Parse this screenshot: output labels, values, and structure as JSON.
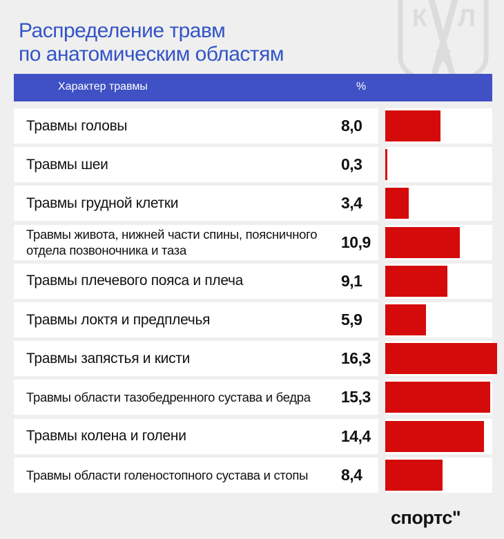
{
  "title_line1": "Распределение травм",
  "title_line2": "по анатомическим областям",
  "header": {
    "label": "Характер травмы",
    "value": "%"
  },
  "logo": {
    "letters": [
      "К",
      "Л",
      "Х"
    ]
  },
  "brand": "спортс\"",
  "colors": {
    "title": "#3354c6",
    "header_bg": "#3f51c4",
    "bar": "#d50b0b",
    "background": "#efefef"
  },
  "chart_data": {
    "type": "bar",
    "orientation": "horizontal",
    "categories": [
      "Травмы головы",
      "Травмы шеи",
      "Травмы грудной клетки",
      "Травмы живота, нижней части спины, поясничного отдела позвоночника и таза",
      "Травмы плечевого пояса и плеча",
      "Травмы локтя и предплечья",
      "Травмы запястья и кисти",
      "Травмы области тазобедренного сустава и бедра",
      "Травмы колена и голени",
      "Травмы области голеностопного сустава и стопы"
    ],
    "values": [
      8.0,
      0.3,
      3.4,
      10.9,
      9.1,
      5.9,
      16.3,
      15.3,
      14.4,
      8.4
    ],
    "value_labels": [
      "8,0",
      "0,3",
      "3,4",
      "10,9",
      "9,1",
      "5,9",
      "16,3",
      "15,3",
      "14,4",
      "8,4"
    ],
    "xlim": [
      0,
      16.3
    ],
    "column_headers": [
      "Характер травмы",
      "%"
    ]
  }
}
